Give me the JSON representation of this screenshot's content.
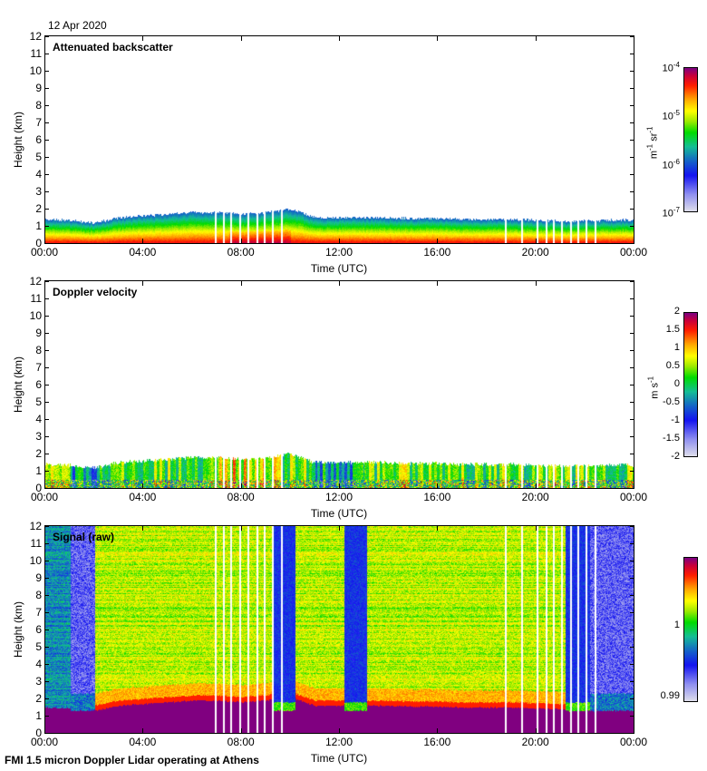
{
  "header": {
    "date": "12 Apr 2020"
  },
  "footer": {
    "text": "FMI 1.5 micron Doppler Lidar operating at Athens"
  },
  "chart_data": [
    {
      "type": "heatmap",
      "title": "Attenuated backscatter",
      "xlabel": "Time (UTC)",
      "ylabel": "Height (km)",
      "xticks": [
        "00:00",
        "04:00",
        "08:00",
        "12:00",
        "16:00",
        "20:00",
        "00:00"
      ],
      "yticks": [
        "0",
        "1",
        "2",
        "3",
        "4",
        "5",
        "6",
        "7",
        "8",
        "9",
        "10",
        "11",
        "12"
      ],
      "xlim_hours": [
        0,
        24
      ],
      "ylim_km": [
        0,
        12
      ],
      "colorbar": {
        "scale": "log",
        "unit_base": "m",
        "unit_exp1": "-1",
        "unit_mid": " sr",
        "unit_exp2": "-1",
        "ticks": [
          {
            "base": "10",
            "exp": "-4"
          },
          {
            "base": "10",
            "exp": "-5"
          },
          {
            "base": "10",
            "exp": "-6"
          },
          {
            "base": "10",
            "exp": "-7"
          }
        ],
        "range": [
          1e-07,
          0.0001
        ]
      },
      "boundary_layer_top_km": [
        1.4,
        1.35,
        1.2,
        1.5,
        1.6,
        1.7,
        1.8,
        1.8,
        1.7,
        1.8,
        2.0,
        1.5,
        1.5,
        1.5,
        1.5,
        1.45,
        1.45,
        1.4,
        1.4,
        1.4,
        1.35,
        1.3,
        1.3,
        1.35,
        1.35
      ]
    },
    {
      "type": "heatmap",
      "title": "Doppler velocity",
      "xlabel": "Time (UTC)",
      "ylabel": "Height (km)",
      "xticks": [
        "00:00",
        "04:00",
        "08:00",
        "12:00",
        "16:00",
        "20:00",
        "00:00"
      ],
      "yticks": [
        "0",
        "1",
        "2",
        "3",
        "4",
        "5",
        "6",
        "7",
        "8",
        "9",
        "10",
        "11",
        "12"
      ],
      "xlim_hours": [
        0,
        24
      ],
      "ylim_km": [
        0,
        12
      ],
      "colorbar": {
        "scale": "linear",
        "unit_base": "m",
        "unit_mid": " s",
        "unit_exp": "-1",
        "ticks": [
          "2",
          "1.5",
          "1",
          "0.5",
          "0",
          "-0.5",
          "-1",
          "-1.5",
          "-2"
        ],
        "range": [
          -2,
          2
        ]
      }
    },
    {
      "type": "heatmap",
      "title": "Signal (raw)",
      "xlabel": "Time (UTC)",
      "ylabel": "Height (km)",
      "xticks": [
        "00:00",
        "04:00",
        "08:00",
        "12:00",
        "16:00",
        "20:00",
        "00:00"
      ],
      "yticks": [
        "0",
        "1",
        "2",
        "3",
        "4",
        "5",
        "6",
        "7",
        "8",
        "9",
        "10",
        "11",
        "12"
      ],
      "xlim_hours": [
        0,
        24
      ],
      "ylim_km": [
        0,
        12
      ],
      "colorbar": {
        "scale": "linear",
        "ticks": [
          "1",
          "0.99"
        ],
        "range": [
          0.99,
          1.01
        ]
      },
      "low_signal_periods_hours": [
        [
          1.0,
          2.0
        ],
        [
          9.3,
          10.2
        ],
        [
          12.2,
          13.1
        ],
        [
          21.2,
          22.2
        ],
        [
          22.2,
          23.0
        ],
        [
          23.0,
          24.0
        ]
      ]
    }
  ],
  "gap_times_hours": [
    6.9,
    7.25,
    7.55,
    7.9,
    8.25,
    8.6,
    8.9,
    9.25,
    9.6,
    18.75,
    19.4,
    20.05,
    20.4,
    20.7,
    21.05,
    21.4,
    21.7,
    22.05,
    22.4
  ]
}
